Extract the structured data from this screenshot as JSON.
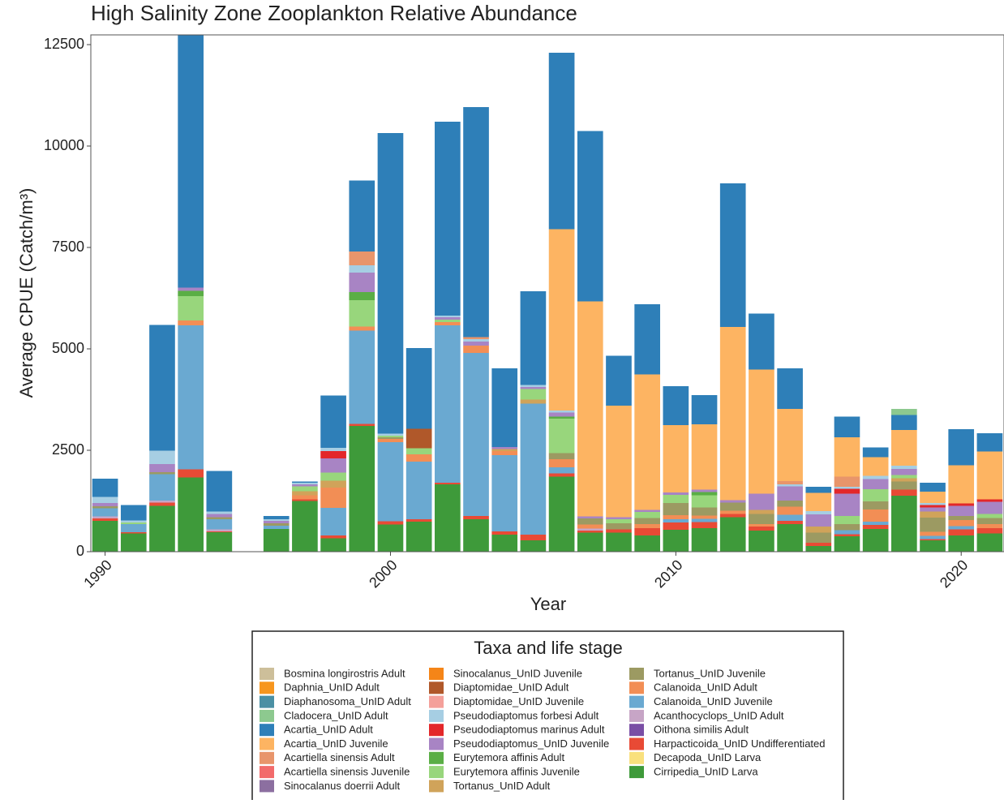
{
  "chart_data": {
    "type": "stacked-bar",
    "title": "High Salinity Zone Zooplankton Relative Abundance",
    "x_label": "Year",
    "y_label": "Average CPUE (Catch/m³)",
    "legend_title": "Taxa and life stage",
    "x": [
      1990,
      1991,
      1992,
      1993,
      1994,
      1995,
      1996,
      1997,
      1998,
      1999,
      2000,
      2001,
      2002,
      2003,
      2004,
      2005,
      2006,
      2007,
      2008,
      2009,
      2010,
      2011,
      2012,
      2013,
      2014,
      2015,
      2016,
      2017,
      2018,
      2019,
      2020,
      2021
    ],
    "xlim": [
      1989.5,
      2021.5
    ],
    "xticks": [
      1990,
      2000,
      2010,
      2020
    ],
    "ylim": [
      0,
      12740
    ],
    "yticks": [
      0,
      2500,
      5000,
      7500,
      10000,
      12500
    ],
    "bar_width": 0.9,
    "series": [
      {
        "name": "Bosmina longirostris Adult",
        "color": "#cdbf9a",
        "values": [
          0,
          0,
          0,
          0,
          0,
          null,
          0,
          0,
          0,
          0,
          0,
          0,
          0,
          0,
          0,
          0,
          0,
          0,
          0,
          0,
          0,
          0,
          0,
          0,
          0,
          0,
          0,
          0,
          0,
          0,
          0,
          0
        ]
      },
      {
        "name": "Daphnia_UnID Adult",
        "color": "#f7961e",
        "values": [
          0,
          0,
          0,
          0,
          0,
          null,
          0,
          0,
          0,
          0,
          0,
          0,
          0,
          0,
          0,
          0,
          0,
          0,
          0,
          0,
          0,
          0,
          0,
          0,
          0,
          0,
          0,
          0,
          0,
          0,
          0,
          0
        ]
      },
      {
        "name": "Diaphanosoma_UnID Adult",
        "color": "#4a90a4",
        "values": [
          0,
          0,
          0,
          0,
          0,
          null,
          0,
          0,
          0,
          0,
          0,
          0,
          0,
          0,
          0,
          0,
          0,
          0,
          0,
          0,
          0,
          0,
          0,
          0,
          0,
          0,
          0,
          0,
          0,
          0,
          0,
          0
        ]
      },
      {
        "name": "Cladocera_UnID Adult",
        "color": "#8dc98f",
        "values": [
          0,
          0,
          0,
          0,
          0,
          null,
          0,
          0,
          0,
          0,
          0,
          0,
          0,
          0,
          0,
          0,
          0,
          0,
          0,
          0,
          0,
          0,
          0,
          0,
          0,
          0,
          0,
          0,
          150,
          0,
          0,
          0
        ]
      },
      {
        "name": "Acartia_UnID Adult",
        "color": "#2e7fb8",
        "values": [
          450,
          380,
          3100,
          6800,
          1000,
          null,
          80,
          30,
          1290,
          1750,
          7410,
          1990,
          4780,
          5670,
          1940,
          2310,
          4350,
          4200,
          1230,
          1730,
          960,
          720,
          3540,
          1380,
          1000,
          150,
          510,
          240,
          370,
          220,
          890,
          450
        ]
      },
      {
        "name": "Acartia_UnID Juvenile",
        "color": "#fdb462",
        "values": [
          0,
          0,
          0,
          0,
          0,
          null,
          0,
          0,
          0,
          0,
          0,
          0,
          0,
          0,
          0,
          0,
          4470,
          5300,
          2750,
          3340,
          1660,
          1610,
          4270,
          3060,
          1780,
          450,
          970,
          460,
          880,
          280,
          940,
          1180
        ]
      },
      {
        "name": "Acartiella sinensis Adult",
        "color": "#e8956b",
        "values": [
          0,
          0,
          0,
          0,
          0,
          null,
          0,
          0,
          0,
          340,
          0,
          0,
          0,
          50,
          0,
          0,
          0,
          0,
          0,
          0,
          0,
          0,
          0,
          0,
          80,
          0,
          250,
          0,
          0,
          0,
          0,
          0
        ]
      },
      {
        "name": "Acartiella sinensis Juvenile",
        "color": "#f26b6b",
        "values": [
          0,
          0,
          0,
          0,
          0,
          null,
          0,
          0,
          0,
          0,
          0,
          0,
          0,
          0,
          0,
          0,
          0,
          0,
          0,
          0,
          0,
          0,
          0,
          0,
          0,
          0,
          0,
          0,
          0,
          0,
          0,
          0
        ]
      },
      {
        "name": "Sinocalanus doerrii Adult",
        "color": "#8c6fa0",
        "values": [
          0,
          0,
          0,
          0,
          0,
          null,
          0,
          0,
          0,
          0,
          0,
          0,
          0,
          0,
          0,
          0,
          0,
          0,
          0,
          0,
          0,
          0,
          0,
          0,
          0,
          0,
          0,
          0,
          0,
          0,
          0,
          0
        ]
      },
      {
        "name": "Sinocalanus_UnID Juvenile",
        "color": "#f58518",
        "values": [
          0,
          0,
          0,
          0,
          0,
          null,
          0,
          0,
          0,
          0,
          0,
          0,
          0,
          0,
          0,
          0,
          0,
          0,
          0,
          0,
          0,
          0,
          0,
          0,
          0,
          0,
          0,
          0,
          0,
          0,
          0,
          0
        ]
      },
      {
        "name": "Diaptomidae_UnID Adult",
        "color": "#b0582a",
        "values": [
          0,
          0,
          0,
          0,
          0,
          null,
          0,
          0,
          0,
          0,
          0,
          480,
          0,
          0,
          0,
          0,
          0,
          0,
          0,
          0,
          0,
          0,
          0,
          0,
          0,
          0,
          0,
          0,
          0,
          0,
          0,
          0
        ]
      },
      {
        "name": "Diaptomidae_UnID Juvenile",
        "color": "#f4a09a",
        "values": [
          0,
          0,
          0,
          0,
          0,
          null,
          0,
          0,
          0,
          0,
          0,
          0,
          0,
          0,
          0,
          0,
          0,
          0,
          0,
          0,
          0,
          0,
          0,
          0,
          0,
          0,
          0,
          0,
          0,
          0,
          0,
          0
        ]
      },
      {
        "name": "Pseudodiaptomus forbesi Adult",
        "color": "#a6cee3",
        "values": [
          150,
          50,
          330,
          0,
          60,
          null,
          40,
          40,
          80,
          180,
          50,
          0,
          40,
          60,
          0,
          50,
          50,
          0,
          0,
          0,
          0,
          0,
          0,
          0,
          50,
          80,
          50,
          80,
          80,
          50,
          0,
          0
        ]
      },
      {
        "name": "Pseudodiaptomus marinus Adult",
        "color": "#e3272a",
        "values": [
          0,
          0,
          0,
          0,
          0,
          null,
          0,
          0,
          180,
          0,
          0,
          0,
          0,
          0,
          0,
          0,
          0,
          0,
          0,
          0,
          0,
          0,
          0,
          0,
          0,
          0,
          120,
          0,
          0,
          60,
          60,
          60
        ]
      },
      {
        "name": "Pseudodiaptomus_UnID Juvenile",
        "color": "#a884c4",
        "values": [
          80,
          0,
          200,
          80,
          80,
          null,
          60,
          50,
          350,
          480,
          0,
          0,
          60,
          100,
          50,
          50,
          100,
          50,
          50,
          50,
          60,
          60,
          60,
          400,
          350,
          300,
          550,
          250,
          150,
          100,
          250,
          300
        ]
      },
      {
        "name": "Eurytemora affinis Adult",
        "color": "#5aae45",
        "values": [
          0,
          0,
          0,
          130,
          0,
          null,
          0,
          0,
          0,
          200,
          0,
          0,
          0,
          0,
          0,
          0,
          50,
          0,
          0,
          0,
          0,
          80,
          0,
          0,
          0,
          0,
          0,
          0,
          0,
          0,
          0,
          0
        ]
      },
      {
        "name": "Eurytemora affinis Juvenile",
        "color": "#98d67c",
        "values": [
          0,
          40,
          0,
          600,
          0,
          null,
          0,
          120,
          200,
          650,
          40,
          150,
          60,
          0,
          0,
          260,
          850,
          0,
          100,
          150,
          200,
          300,
          0,
          0,
          0,
          0,
          200,
          300,
          80,
          0,
          0,
          100
        ]
      },
      {
        "name": "Tortanus_UnID Adult",
        "color": "#d0a35a",
        "values": [
          0,
          0,
          0,
          0,
          0,
          null,
          0,
          100,
          170,
          0,
          0,
          0,
          0,
          0,
          50,
          100,
          0,
          0,
          0,
          0,
          0,
          0,
          0,
          100,
          0,
          150,
          0,
          0,
          80,
          150,
          0,
          0
        ]
      },
      {
        "name": "Tortanus_UnID Juvenile",
        "color": "#9c9a62",
        "values": [
          50,
          0,
          50,
          0,
          50,
          null,
          60,
          0,
          0,
          0,
          40,
          0,
          0,
          0,
          0,
          0,
          150,
          150,
          150,
          150,
          300,
          200,
          200,
          250,
          150,
          250,
          150,
          200,
          200,
          350,
          100,
          150
        ]
      },
      {
        "name": "Calanoida_UnID Adult",
        "color": "#f28e55",
        "values": [
          0,
          0,
          0,
          120,
          0,
          null,
          0,
          100,
          500,
          100,
          80,
          180,
          80,
          180,
          100,
          0,
          200,
          100,
          0,
          100,
          100,
          80,
          80,
          60,
          200,
          0,
          0,
          300,
          0,
          100,
          150,
          100
        ]
      },
      {
        "name": "Calanoida_UnID Juvenile",
        "color": "#6aa9d1",
        "values": [
          200,
          200,
          650,
          3550,
          250,
          null,
          80,
          0,
          680,
          2300,
          1950,
          1420,
          3880,
          4020,
          1880,
          3230,
          150,
          0,
          0,
          0,
          80,
          80,
          0,
          0,
          150,
          0,
          100,
          80,
          0,
          80,
          80,
          0
        ]
      },
      {
        "name": "Acanthocyclops_UnID Adult",
        "color": "#c7a5c6",
        "values": [
          50,
          0,
          50,
          0,
          50,
          null,
          0,
          0,
          0,
          0,
          0,
          0,
          0,
          0,
          0,
          0,
          0,
          50,
          0,
          0,
          0,
          0,
          0,
          0,
          0,
          0,
          0,
          0,
          0,
          0,
          0,
          0
        ]
      },
      {
        "name": "Oithona similis Adult",
        "color": "#7a4ea5",
        "values": [
          0,
          0,
          0,
          0,
          0,
          null,
          0,
          0,
          0,
          0,
          0,
          0,
          0,
          0,
          0,
          0,
          0,
          0,
          0,
          0,
          0,
          0,
          0,
          0,
          0,
          0,
          0,
          0,
          0,
          0,
          0,
          0
        ]
      },
      {
        "name": "Harpacticoida_UnID Undifferentiated",
        "color": "#e84a35",
        "values": [
          60,
          30,
          80,
          200,
          20,
          null,
          0,
          40,
          70,
          50,
          80,
          60,
          40,
          80,
          80,
          140,
          80,
          50,
          80,
          180,
          180,
          150,
          80,
          100,
          80,
          80,
          50,
          100,
          150,
          30,
          150,
          130
        ]
      },
      {
        "name": "Decapoda_UnID Larva",
        "color": "#f9e07d",
        "values": [
          0,
          0,
          0,
          0,
          0,
          null,
          0,
          0,
          0,
          0,
          0,
          0,
          0,
          0,
          0,
          0,
          0,
          0,
          0,
          0,
          0,
          0,
          0,
          0,
          0,
          0,
          0,
          0,
          0,
          0,
          0,
          0
        ]
      },
      {
        "name": "Cirripedia_UnID Larva",
        "color": "#3e9a3a",
        "values": [
          760,
          450,
          1130,
          1830,
          480,
          null,
          560,
          1250,
          330,
          3100,
          670,
          740,
          1660,
          800,
          420,
          280,
          1850,
          470,
          470,
          400,
          540,
          580,
          850,
          520,
          680,
          140,
          380,
          560,
          1380,
          280,
          400,
          450
        ]
      }
    ]
  }
}
